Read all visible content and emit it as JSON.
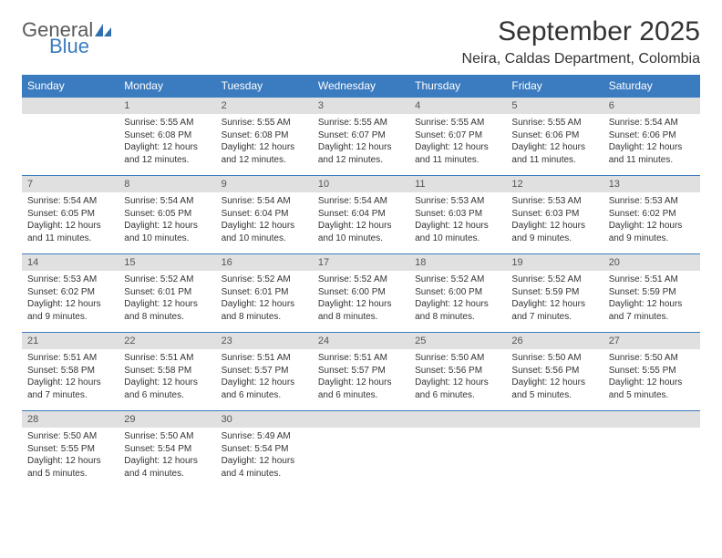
{
  "logo": {
    "text1": "General",
    "text2": "Blue",
    "icon_color": "#2f6fb0"
  },
  "title": "September 2025",
  "location": "Neira, Caldas Department, Colombia",
  "colors": {
    "header_bg": "#3b7bbf",
    "header_text": "#ffffff",
    "daynum_bg": "#e0e0e0",
    "daynum_text": "#555555",
    "body_text": "#333333",
    "rule": "#3b7bbf"
  },
  "day_headers": [
    "Sunday",
    "Monday",
    "Tuesday",
    "Wednesday",
    "Thursday",
    "Friday",
    "Saturday"
  ],
  "weeks": [
    [
      null,
      {
        "n": "1",
        "sr": "5:55 AM",
        "ss": "6:08 PM",
        "dl": "12 hours and 12 minutes."
      },
      {
        "n": "2",
        "sr": "5:55 AM",
        "ss": "6:08 PM",
        "dl": "12 hours and 12 minutes."
      },
      {
        "n": "3",
        "sr": "5:55 AM",
        "ss": "6:07 PM",
        "dl": "12 hours and 12 minutes."
      },
      {
        "n": "4",
        "sr": "5:55 AM",
        "ss": "6:07 PM",
        "dl": "12 hours and 11 minutes."
      },
      {
        "n": "5",
        "sr": "5:55 AM",
        "ss": "6:06 PM",
        "dl": "12 hours and 11 minutes."
      },
      {
        "n": "6",
        "sr": "5:54 AM",
        "ss": "6:06 PM",
        "dl": "12 hours and 11 minutes."
      }
    ],
    [
      {
        "n": "7",
        "sr": "5:54 AM",
        "ss": "6:05 PM",
        "dl": "12 hours and 11 minutes."
      },
      {
        "n": "8",
        "sr": "5:54 AM",
        "ss": "6:05 PM",
        "dl": "12 hours and 10 minutes."
      },
      {
        "n": "9",
        "sr": "5:54 AM",
        "ss": "6:04 PM",
        "dl": "12 hours and 10 minutes."
      },
      {
        "n": "10",
        "sr": "5:54 AM",
        "ss": "6:04 PM",
        "dl": "12 hours and 10 minutes."
      },
      {
        "n": "11",
        "sr": "5:53 AM",
        "ss": "6:03 PM",
        "dl": "12 hours and 10 minutes."
      },
      {
        "n": "12",
        "sr": "5:53 AM",
        "ss": "6:03 PM",
        "dl": "12 hours and 9 minutes."
      },
      {
        "n": "13",
        "sr": "5:53 AM",
        "ss": "6:02 PM",
        "dl": "12 hours and 9 minutes."
      }
    ],
    [
      {
        "n": "14",
        "sr": "5:53 AM",
        "ss": "6:02 PM",
        "dl": "12 hours and 9 minutes."
      },
      {
        "n": "15",
        "sr": "5:52 AM",
        "ss": "6:01 PM",
        "dl": "12 hours and 8 minutes."
      },
      {
        "n": "16",
        "sr": "5:52 AM",
        "ss": "6:01 PM",
        "dl": "12 hours and 8 minutes."
      },
      {
        "n": "17",
        "sr": "5:52 AM",
        "ss": "6:00 PM",
        "dl": "12 hours and 8 minutes."
      },
      {
        "n": "18",
        "sr": "5:52 AM",
        "ss": "6:00 PM",
        "dl": "12 hours and 8 minutes."
      },
      {
        "n": "19",
        "sr": "5:52 AM",
        "ss": "5:59 PM",
        "dl": "12 hours and 7 minutes."
      },
      {
        "n": "20",
        "sr": "5:51 AM",
        "ss": "5:59 PM",
        "dl": "12 hours and 7 minutes."
      }
    ],
    [
      {
        "n": "21",
        "sr": "5:51 AM",
        "ss": "5:58 PM",
        "dl": "12 hours and 7 minutes."
      },
      {
        "n": "22",
        "sr": "5:51 AM",
        "ss": "5:58 PM",
        "dl": "12 hours and 6 minutes."
      },
      {
        "n": "23",
        "sr": "5:51 AM",
        "ss": "5:57 PM",
        "dl": "12 hours and 6 minutes."
      },
      {
        "n": "24",
        "sr": "5:51 AM",
        "ss": "5:57 PM",
        "dl": "12 hours and 6 minutes."
      },
      {
        "n": "25",
        "sr": "5:50 AM",
        "ss": "5:56 PM",
        "dl": "12 hours and 6 minutes."
      },
      {
        "n": "26",
        "sr": "5:50 AM",
        "ss": "5:56 PM",
        "dl": "12 hours and 5 minutes."
      },
      {
        "n": "27",
        "sr": "5:50 AM",
        "ss": "5:55 PM",
        "dl": "12 hours and 5 minutes."
      }
    ],
    [
      {
        "n": "28",
        "sr": "5:50 AM",
        "ss": "5:55 PM",
        "dl": "12 hours and 5 minutes."
      },
      {
        "n": "29",
        "sr": "5:50 AM",
        "ss": "5:54 PM",
        "dl": "12 hours and 4 minutes."
      },
      {
        "n": "30",
        "sr": "5:49 AM",
        "ss": "5:54 PM",
        "dl": "12 hours and 4 minutes."
      },
      null,
      null,
      null,
      null
    ]
  ],
  "labels": {
    "sunrise": "Sunrise:",
    "sunset": "Sunset:",
    "daylight": "Daylight:"
  }
}
